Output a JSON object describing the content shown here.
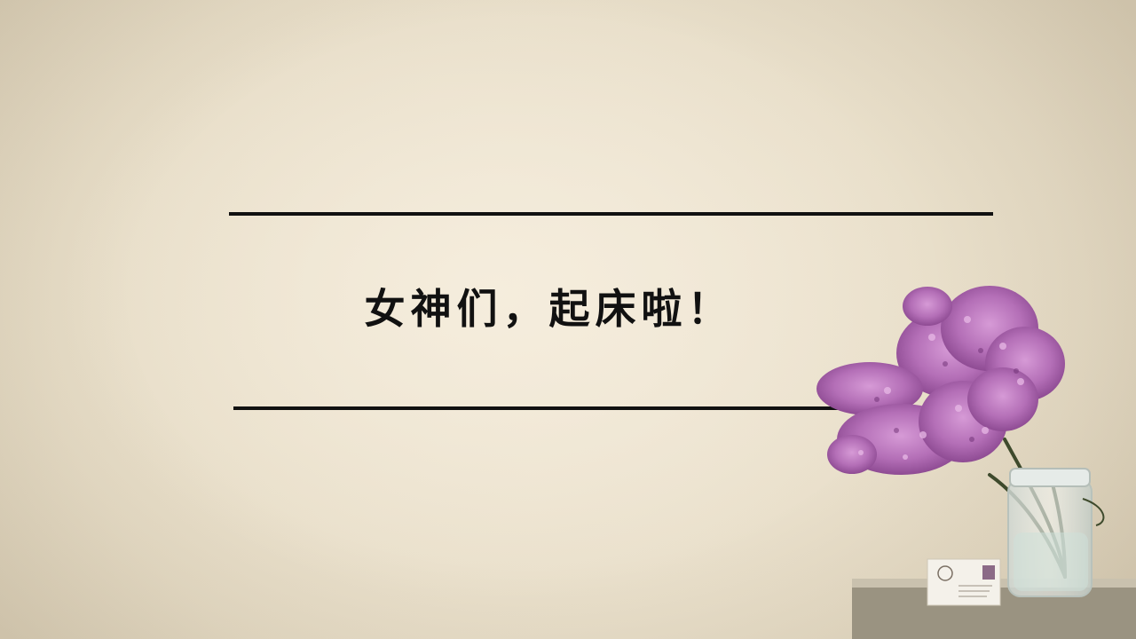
{
  "slide": {
    "title": "女神们，起床啦！"
  },
  "decor": {
    "flower_color": "#b46fb7",
    "flower_dark": "#8e4b93",
    "stem_color": "#3e4a2c",
    "jar_color": "#dfe6e2",
    "table_color": "#a79f8e"
  }
}
